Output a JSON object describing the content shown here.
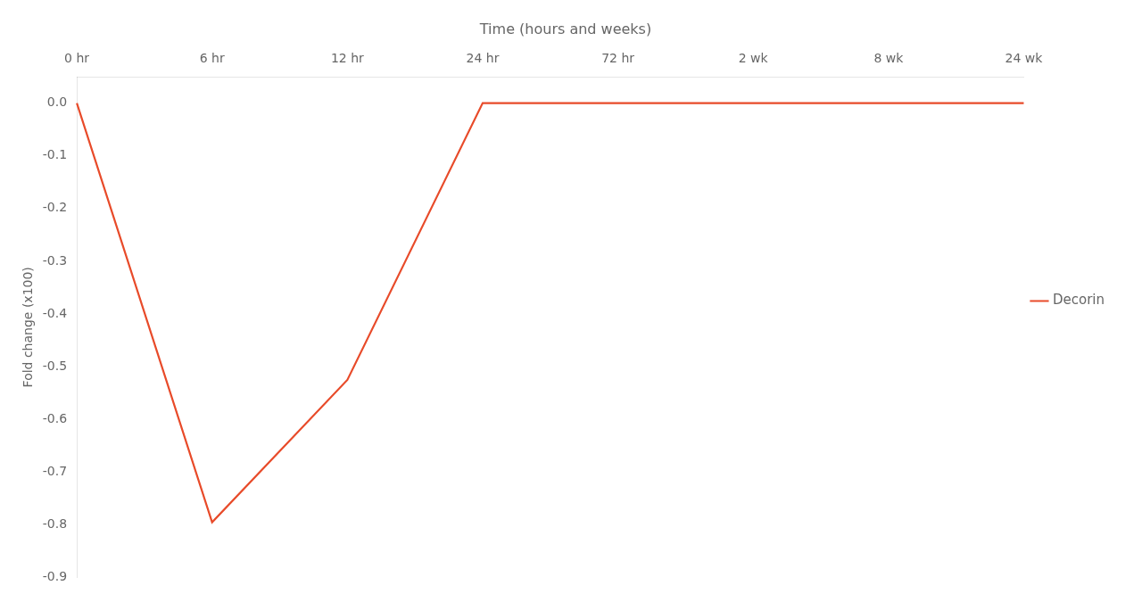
{
  "chart_data": {
    "type": "line",
    "title": "Time (hours and weeks)",
    "y_label": "Fold change (x100)",
    "categories": [
      "0 hr",
      "6 hr",
      "12 hr",
      "24 hr",
      "72 hr",
      "2 wk",
      "8 wk",
      "24 wk"
    ],
    "series": [
      {
        "name": "Decorin",
        "color": "#E84B2A",
        "values": [
          0,
          -0.795,
          -0.525,
          0,
          0,
          0,
          0,
          0
        ]
      }
    ],
    "ylim": [
      -0.9,
      0.05
    ],
    "yticks": [
      {
        "value": 0,
        "label": "0.0"
      },
      -0.1,
      -0.2,
      -0.3,
      -0.4,
      -0.5,
      -0.6,
      -0.7,
      -0.8,
      -0.9
    ],
    "grid": false,
    "legend": "right"
  }
}
